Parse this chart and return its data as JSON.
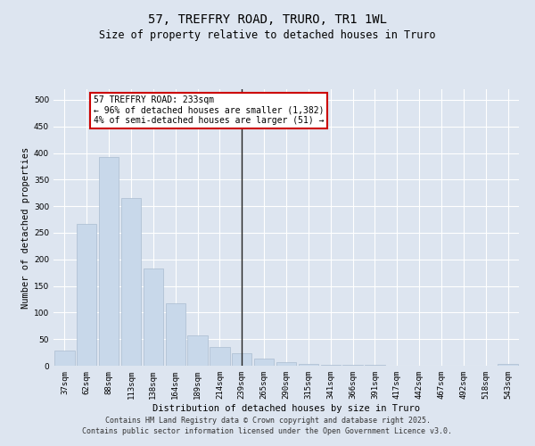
{
  "title": "57, TREFFRY ROAD, TRURO, TR1 1WL",
  "subtitle": "Size of property relative to detached houses in Truro",
  "xlabel": "Distribution of detached houses by size in Truro",
  "ylabel": "Number of detached properties",
  "categories": [
    "37sqm",
    "62sqm",
    "88sqm",
    "113sqm",
    "138sqm",
    "164sqm",
    "189sqm",
    "214sqm",
    "239sqm",
    "265sqm",
    "290sqm",
    "315sqm",
    "341sqm",
    "366sqm",
    "391sqm",
    "417sqm",
    "442sqm",
    "467sqm",
    "492sqm",
    "518sqm",
    "543sqm"
  ],
  "values": [
    28,
    267,
    392,
    315,
    183,
    117,
    57,
    35,
    24,
    13,
    6,
    3,
    1,
    1,
    1,
    0,
    0,
    0,
    0,
    0,
    3
  ],
  "bar_color": "#c8d8ea",
  "bar_edge_color": "#aabcd0",
  "vline_x_index": 8,
  "vline_color": "#222222",
  "annotation_text": "57 TREFFRY ROAD: 233sqm\n← 96% of detached houses are smaller (1,382)\n4% of semi-detached houses are larger (51) →",
  "annotation_box_color": "#ffffff",
  "annotation_box_edge": "#cc0000",
  "ylim": [
    0,
    520
  ],
  "yticks": [
    0,
    50,
    100,
    150,
    200,
    250,
    300,
    350,
    400,
    450,
    500
  ],
  "background_color": "#dde5f0",
  "grid_color": "#ffffff",
  "footer_text": "Contains HM Land Registry data © Crown copyright and database right 2025.\nContains public sector information licensed under the Open Government Licence v3.0.",
  "title_fontsize": 10,
  "subtitle_fontsize": 8.5,
  "axis_label_fontsize": 7.5,
  "tick_fontsize": 6.5,
  "annotation_fontsize": 7,
  "footer_fontsize": 6
}
